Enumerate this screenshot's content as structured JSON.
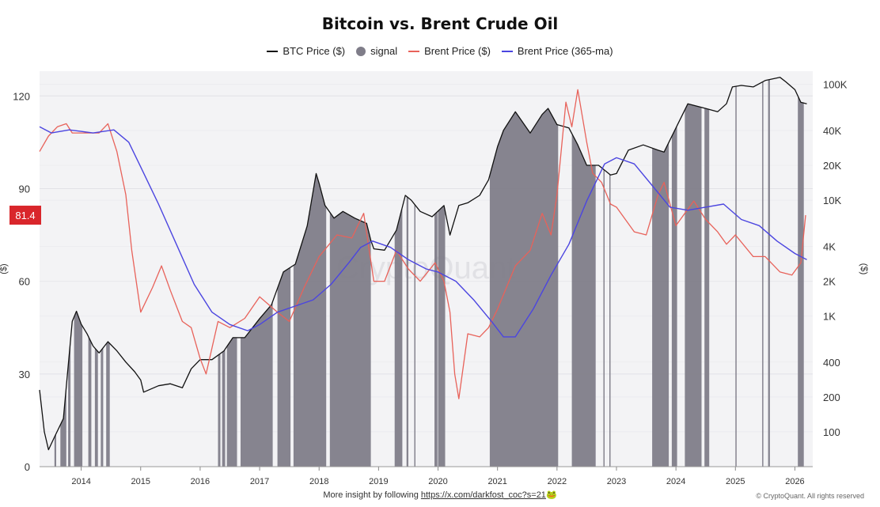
{
  "chart_data": {
    "type": "line",
    "title": "Bitcoin vs. Brent Crude Oil",
    "left_axis": {
      "label": "($)",
      "ticks": [
        0,
        30,
        60,
        90,
        120
      ],
      "range": [
        0,
        128
      ]
    },
    "right_axis": {
      "label": "($)",
      "scale": "log",
      "ticks": [
        100,
        200,
        400,
        1000,
        2000,
        4000,
        10000,
        20000,
        40000,
        100000
      ],
      "tick_labels": [
        "100",
        "200",
        "400",
        "1K",
        "2K",
        "4K",
        "10K",
        "20K",
        "40K",
        "100K"
      ],
      "range": [
        50,
        130000
      ]
    },
    "x_axis": {
      "ticks": [
        "2014",
        "2015",
        "2016",
        "2017",
        "2018",
        "2019",
        "2020",
        "2021",
        "2022",
        "2023",
        "2024",
        "2025",
        "2026"
      ],
      "range": [
        2013.3,
        2026.3
      ]
    },
    "current_value_label": "81.4",
    "legend": [
      {
        "name": "BTC Price ($)",
        "color": "#111111",
        "marker": "line"
      },
      {
        "name": "signal",
        "color": "#7f7d89",
        "marker": "dot"
      },
      {
        "name": "Brent Price ($)",
        "color": "#e8625a",
        "marker": "line"
      },
      {
        "name": "Brent Price (365-ma)",
        "color": "#4b45e0",
        "marker": "line"
      }
    ],
    "series": [
      {
        "name": "BTC Price ($)",
        "axis": "right",
        "color": "#111111",
        "x": [
          2013.3,
          2013.38,
          2013.45,
          2013.55,
          2013.7,
          2013.85,
          2013.92,
          2014.0,
          2014.1,
          2014.2,
          2014.3,
          2014.45,
          2014.6,
          2014.75,
          2014.9,
          2015.0,
          2015.05,
          2015.3,
          2015.5,
          2015.7,
          2015.85,
          2016.0,
          2016.2,
          2016.4,
          2016.55,
          2016.75,
          2017.0,
          2017.2,
          2017.4,
          2017.6,
          2017.8,
          2017.95,
          2018.0,
          2018.1,
          2018.25,
          2018.4,
          2018.6,
          2018.8,
          2018.87,
          2018.92,
          2019.1,
          2019.3,
          2019.45,
          2019.55,
          2019.7,
          2019.9,
          2020.1,
          2020.2,
          2020.35,
          2020.5,
          2020.7,
          2020.85,
          2021.0,
          2021.1,
          2021.3,
          2021.55,
          2021.75,
          2021.85,
          2022.0,
          2022.2,
          2022.35,
          2022.5,
          2022.7,
          2022.9,
          2023.0,
          2023.2,
          2023.45,
          2023.7,
          2023.8,
          2024.0,
          2024.2,
          2024.5,
          2024.7,
          2024.85,
          2024.95,
          2025.1,
          2025.3,
          2025.5,
          2025.75,
          2025.85,
          2026.0,
          2026.1,
          2026.2
        ],
        "y": [
          230,
          100,
          70,
          90,
          130,
          900,
          1100,
          850,
          700,
          550,
          480,
          600,
          500,
          400,
          330,
          280,
          220,
          250,
          260,
          240,
          350,
          420,
          420,
          500,
          650,
          650,
          950,
          1250,
          2400,
          2800,
          6000,
          17000,
          14000,
          9000,
          7000,
          8000,
          7000,
          6300,
          4500,
          3800,
          3700,
          5500,
          11000,
          10000,
          8000,
          7200,
          9000,
          5000,
          9000,
          9500,
          11000,
          15000,
          29000,
          40000,
          58000,
          38000,
          55000,
          62000,
          45000,
          42000,
          30000,
          20000,
          20000,
          16500,
          17000,
          27000,
          30000,
          27000,
          26000,
          42000,
          68000,
          62000,
          58000,
          68000,
          95000,
          98000,
          95000,
          108000,
          115000,
          105000,
          90000,
          70000,
          68000
        ]
      },
      {
        "name": "Brent Price ($)",
        "axis": "left",
        "color": "#e8625a",
        "x": [
          2013.3,
          2013.45,
          2013.6,
          2013.75,
          2013.85,
          2014.0,
          2014.3,
          2014.45,
          2014.6,
          2014.75,
          2014.85,
          2015.0,
          2015.2,
          2015.35,
          2015.5,
          2015.7,
          2015.85,
          2016.0,
          2016.1,
          2016.3,
          2016.5,
          2016.75,
          2017.0,
          2017.3,
          2017.5,
          2017.75,
          2018.0,
          2018.3,
          2018.55,
          2018.75,
          2018.92,
          2019.1,
          2019.3,
          2019.5,
          2019.7,
          2019.95,
          2020.1,
          2020.2,
          2020.28,
          2020.35,
          2020.5,
          2020.7,
          2020.85,
          2021.0,
          2021.3,
          2021.55,
          2021.75,
          2021.9,
          2022.0,
          2022.15,
          2022.25,
          2022.35,
          2022.5,
          2022.6,
          2022.75,
          2022.9,
          2023.0,
          2023.3,
          2023.5,
          2023.7,
          2023.8,
          2024.0,
          2024.3,
          2024.5,
          2024.7,
          2024.85,
          2025.0,
          2025.3,
          2025.5,
          2025.75,
          2025.95,
          2026.1,
          2026.18
        ],
        "y": [
          102,
          107,
          110,
          111,
          108,
          108,
          108,
          111,
          102,
          88,
          70,
          50,
          58,
          65,
          57,
          47,
          45,
          35,
          30,
          47,
          45,
          48,
          55,
          50,
          47,
          58,
          68,
          75,
          74,
          82,
          60,
          60,
          70,
          64,
          60,
          66,
          60,
          50,
          30,
          22,
          43,
          42,
          45,
          51,
          65,
          70,
          82,
          75,
          88,
          118,
          110,
          122,
          105,
          95,
          92,
          85,
          84,
          76,
          75,
          88,
          92,
          78,
          86,
          80,
          76,
          72,
          75,
          68,
          68,
          63,
          62,
          66,
          81.4
        ]
      },
      {
        "name": "Brent Price (365-ma)",
        "axis": "left",
        "color": "#4b45e0",
        "x": [
          2013.3,
          2013.5,
          2013.8,
          2014.2,
          2014.55,
          2014.8,
          2015.0,
          2015.3,
          2015.6,
          2015.9,
          2016.2,
          2016.5,
          2016.8,
          2017.0,
          2017.3,
          2017.6,
          2017.9,
          2018.2,
          2018.5,
          2018.7,
          2018.9,
          2019.2,
          2019.5,
          2019.8,
          2020.0,
          2020.3,
          2020.6,
          2020.9,
          2021.1,
          2021.3,
          2021.6,
          2021.9,
          2022.2,
          2022.5,
          2022.8,
          2023.0,
          2023.3,
          2023.6,
          2023.9,
          2024.2,
          2024.5,
          2024.8,
          2025.1,
          2025.4,
          2025.7,
          2026.0,
          2026.2
        ],
        "y": [
          110,
          108,
          109,
          108,
          109,
          105,
          97,
          85,
          72,
          59,
          50,
          46,
          44,
          46,
          50,
          52,
          54,
          59,
          66,
          71,
          73,
          71,
          67,
          64,
          63,
          60,
          54,
          47,
          42,
          42,
          51,
          62,
          72,
          86,
          98,
          100,
          98,
          91,
          84,
          83,
          84,
          85,
          80,
          78,
          73,
          69,
          67
        ]
      }
    ],
    "signal_periods": [
      [
        2013.55,
        2013.58
      ],
      [
        2013.65,
        2013.75
      ],
      [
        2013.78,
        2013.82
      ],
      [
        2013.88,
        2014.02
      ],
      [
        2014.12,
        2014.17
      ],
      [
        2014.23,
        2014.28
      ],
      [
        2014.33,
        2014.37
      ],
      [
        2014.42,
        2014.48
      ],
      [
        2016.3,
        2016.34
      ],
      [
        2016.37,
        2016.42
      ],
      [
        2016.45,
        2016.62
      ],
      [
        2016.68,
        2017.22
      ],
      [
        2017.3,
        2017.52
      ],
      [
        2017.57,
        2018.12
      ],
      [
        2018.18,
        2018.87
      ],
      [
        2019.27,
        2019.4
      ],
      [
        2019.47,
        2019.5
      ],
      [
        2019.6,
        2019.62
      ],
      [
        2019.94,
        2019.99
      ],
      [
        2020.0,
        2020.12
      ],
      [
        2020.87,
        2022.02
      ],
      [
        2022.25,
        2022.65
      ],
      [
        2022.78,
        2022.8
      ],
      [
        2022.88,
        2022.9
      ],
      [
        2023.6,
        2023.88
      ],
      [
        2023.93,
        2024.02
      ],
      [
        2024.15,
        2024.43
      ],
      [
        2024.48,
        2024.56
      ],
      [
        2025.0,
        2025.02
      ],
      [
        2025.45,
        2025.47
      ],
      [
        2025.55,
        2025.58
      ],
      [
        2026.05,
        2026.15
      ]
    ]
  },
  "watermark": "CryptoQuant",
  "footer": {
    "text": "More insight by following",
    "link": "https://x.com/darkfost_coc?s=21",
    "emoji": "🐸"
  },
  "copyright": "© CryptoQuant. All rights reserved"
}
